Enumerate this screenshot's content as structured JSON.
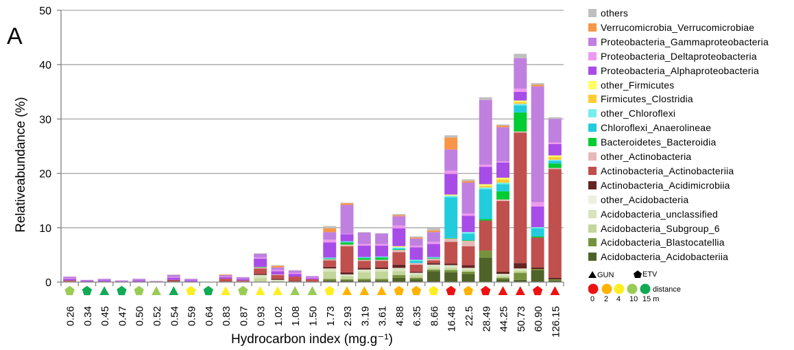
{
  "panel_label": "A",
  "chart_data": {
    "type": "bar",
    "stacked": true,
    "xlabel": "Hydrocarbon index (mg.g⁻¹)",
    "ylabel": "Relativeabundance (%)",
    "ylim": [
      0,
      50
    ],
    "yticks": [
      0,
      10,
      20,
      30,
      40,
      50
    ],
    "grid": true,
    "legend_position": "right",
    "categories": [
      "0.26",
      "0.34",
      "0.45",
      "0.47",
      "0.50",
      "0.52",
      "0.54",
      "0.59",
      "0.64",
      "0.83",
      "0.87",
      "0.93",
      "1.02",
      "1.08",
      "1.50",
      "1.73",
      "2.93",
      "3.19",
      "3.61",
      "4.88",
      "6.35",
      "8.66",
      "16.48",
      "22.5",
      "28.49",
      "44.25",
      "50.73",
      "60.90",
      "126.15"
    ],
    "sample_markers": [
      {
        "shape": "pentagon",
        "color": "#99cc55"
      },
      {
        "shape": "pentagon",
        "color": "#11aa55"
      },
      {
        "shape": "triangle",
        "color": "#11aa55"
      },
      {
        "shape": "pentagon",
        "color": "#11aa55"
      },
      {
        "shape": "pentagon",
        "color": "#99cc55"
      },
      {
        "shape": "triangle",
        "color": "#99cc55"
      },
      {
        "shape": "triangle",
        "color": "#11aa55"
      },
      {
        "shape": "pentagon",
        "color": "#ffee22"
      },
      {
        "shape": "pentagon",
        "color": "#11aa55"
      },
      {
        "shape": "triangle",
        "color": "#ffee22"
      },
      {
        "shape": "pentagon",
        "color": "#99cc55"
      },
      {
        "shape": "triangle",
        "color": "#ffee22"
      },
      {
        "shape": "triangle",
        "color": "#ffee22"
      },
      {
        "shape": "triangle",
        "color": "#99cc55"
      },
      {
        "shape": "triangle",
        "color": "#99cc55"
      },
      {
        "shape": "pentagon",
        "color": "#ffee22"
      },
      {
        "shape": "triangle",
        "color": "#ffb300"
      },
      {
        "shape": "triangle",
        "color": "#ffb300"
      },
      {
        "shape": "triangle",
        "color": "#ffb300"
      },
      {
        "shape": "pentagon",
        "color": "#ffb300"
      },
      {
        "shape": "pentagon",
        "color": "#ffb300"
      },
      {
        "shape": "pentagon",
        "color": "#ffee22"
      },
      {
        "shape": "pentagon",
        "color": "#ee1111"
      },
      {
        "shape": "pentagon",
        "color": "#ffb300"
      },
      {
        "shape": "pentagon",
        "color": "#ee1111"
      },
      {
        "shape": "triangle",
        "color": "#ee1111"
      },
      {
        "shape": "triangle",
        "color": "#ee1111"
      },
      {
        "shape": "pentagon",
        "color": "#ee1111"
      },
      {
        "shape": "triangle",
        "color": "#ee1111"
      }
    ],
    "series": [
      {
        "name": "Acidobacteria_Acidobacteriia",
        "color": "#4f6228",
        "values": [
          0,
          0,
          0,
          0,
          0,
          0,
          0,
          0,
          0,
          0,
          0,
          0,
          0,
          0,
          0,
          0.3,
          0.3,
          0.3,
          0.3,
          0.8,
          0.5,
          2.0,
          1.8,
          1.5,
          4.5,
          0.5,
          0.4,
          2.2,
          0.3
        ]
      },
      {
        "name": "Acidobacteria_Blastocatellia",
        "color": "#76923c",
        "values": [
          0,
          0,
          0,
          0,
          0,
          0,
          0,
          0,
          0,
          0,
          0,
          0,
          0,
          0,
          0,
          0.3,
          0.2,
          0.3,
          0.3,
          0.5,
          0.3,
          0.3,
          0.4,
          0.4,
          1.3,
          0.3,
          1.3,
          0.2,
          0.2
        ]
      },
      {
        "name": "Acidobacteria_Subgroup_6",
        "color": "#c3d69b",
        "values": [
          0.1,
          0,
          0,
          0,
          0,
          0,
          0.1,
          0,
          0,
          0,
          0.1,
          0.7,
          0.2,
          0,
          0,
          1.3,
          0.6,
          1.2,
          1.3,
          0.7,
          0.5,
          0.3,
          0.4,
          0.3,
          0,
          0.3,
          0.4,
          0,
          0
        ]
      },
      {
        "name": "Acidobacteria_unclassified",
        "color": "#d7e4bd",
        "values": [
          0,
          0,
          0,
          0,
          0,
          0,
          0,
          0,
          0,
          0,
          0,
          0.5,
          0.1,
          0.1,
          0,
          0.5,
          0.2,
          0.4,
          0.4,
          0.5,
          0.3,
          0.5,
          0.4,
          0.3,
          0,
          0.3,
          0.3,
          0,
          0
        ]
      },
      {
        "name": "other_Acidobacteria",
        "color": "#ebf1de",
        "values": [
          0,
          0,
          0,
          0,
          0,
          0,
          0,
          0,
          0,
          0,
          0,
          0.1,
          0.1,
          0,
          0,
          0.1,
          0.1,
          0.1,
          0.1,
          0.1,
          0.1,
          0.1,
          0.1,
          0.1,
          0,
          0.1,
          0.1,
          0,
          0
        ]
      },
      {
        "name": "Actinobacteria_Acidimicrobiia",
        "color": "#632523",
        "values": [
          0,
          0,
          0,
          0,
          0,
          0,
          0.1,
          0,
          0,
          0.1,
          0,
          0.2,
          0.2,
          0.1,
          0.1,
          0.3,
          0.4,
          0.3,
          0.3,
          0.6,
          0.2,
          0.3,
          0.3,
          0.5,
          0,
          0.4,
          1.0,
          0.3,
          0.3
        ]
      },
      {
        "name": "Actinobacteria_Actinobacteriia",
        "color": "#c0504d",
        "values": [
          0.2,
          0,
          0.1,
          0,
          0.1,
          0,
          0.2,
          0.1,
          0,
          0.5,
          0.2,
          1.0,
          0.7,
          0.8,
          0.4,
          1.2,
          4.8,
          1.3,
          1.2,
          2.3,
          1.3,
          0.5,
          4.0,
          3.5,
          5.5,
          13.0,
          24.0,
          5.5,
          20.0
        ]
      },
      {
        "name": "other_Actinobacteria",
        "color": "#e6b9b8",
        "values": [
          0,
          0,
          0,
          0,
          0,
          0,
          0,
          0,
          0,
          0,
          0,
          0.2,
          0.1,
          0,
          0,
          0.2,
          0.3,
          0.2,
          0.2,
          0.4,
          0.3,
          0.3,
          0.6,
          1.0,
          0,
          0.3,
          0.2,
          0,
          0.2
        ]
      },
      {
        "name": "Bacteroidetes_Bacteroidia",
        "color": "#00cc33",
        "values": [
          0,
          0,
          0,
          0,
          0,
          0,
          0,
          0,
          0,
          0,
          0,
          0.1,
          0,
          0,
          0,
          0.1,
          0.4,
          0.3,
          0.4,
          0.1,
          0,
          0.1,
          0.1,
          0.1,
          0.3,
          1.5,
          3.5,
          0.2,
          0.8
        ]
      },
      {
        "name": "Chloroflexi_Anaerolineae",
        "color": "#22ccdd",
        "values": [
          0,
          0,
          0,
          0,
          0,
          0,
          0,
          0,
          0,
          0,
          0,
          0,
          0,
          0,
          0,
          0.1,
          0.1,
          0.1,
          0.1,
          0.2,
          0.4,
          0.1,
          7.5,
          1.2,
          5.5,
          1.3,
          1.3,
          1.5,
          0.5
        ]
      },
      {
        "name": "other_Chloroflexi",
        "color": "#77eeee",
        "values": [
          0,
          0,
          0,
          0,
          0,
          0,
          0,
          0,
          0,
          0,
          0,
          0,
          0,
          0,
          0,
          0.1,
          0.1,
          0.1,
          0.1,
          0.2,
          0.2,
          0.1,
          0.3,
          0.3,
          0.3,
          0.3,
          0.3,
          0.2,
          0.2
        ]
      },
      {
        "name": "Firmicutes_Clostridia",
        "color": "#ffcc33",
        "values": [
          0,
          0,
          0,
          0,
          0,
          0,
          0,
          0,
          0,
          0,
          0,
          0,
          0,
          0,
          0,
          0,
          0,
          0,
          0,
          0,
          0,
          0,
          0,
          0,
          0.3,
          0.6,
          0.3,
          0,
          0.5
        ]
      },
      {
        "name": "other_Firmicutes",
        "color": "#ffff66",
        "values": [
          0,
          0,
          0,
          0,
          0,
          0,
          0,
          0,
          0,
          0,
          0,
          0,
          0,
          0,
          0,
          0,
          0,
          0,
          0,
          0.2,
          0,
          0,
          0.2,
          0,
          0.3,
          0.3,
          0.3,
          0,
          0.3
        ]
      },
      {
        "name": "Proteobacteria_Alphaproteobacteria",
        "color": "#a84ce8",
        "values": [
          0.3,
          0.2,
          0.2,
          0.1,
          0.2,
          0.1,
          0.4,
          0.2,
          0,
          0.3,
          0.2,
          1.5,
          0.6,
          0.5,
          0.2,
          2.8,
          1.3,
          2.1,
          2.0,
          3.3,
          2.3,
          2.4,
          3.8,
          3.0,
          3.2,
          2.8,
          1.6,
          3.8,
          2.1
        ]
      },
      {
        "name": "Proteobacteria_Deltaproteobacteria",
        "color": "#ee99ee",
        "values": [
          0.1,
          0,
          0,
          0,
          0,
          0,
          0.1,
          0,
          0,
          0.1,
          0,
          0.2,
          0.2,
          0.2,
          0.1,
          0.5,
          0.1,
          0.3,
          0.3,
          0.5,
          0.3,
          0.4,
          0.6,
          0.4,
          0.4,
          0.2,
          0.6,
          0.8,
          0.3
        ]
      },
      {
        "name": "Proteobacteria_Gammaproteobacteria",
        "color": "#c080e0",
        "values": [
          0.3,
          0.2,
          0.3,
          0.2,
          0.3,
          0.1,
          0.4,
          0.3,
          0,
          0.3,
          0.4,
          0.7,
          0.5,
          0.4,
          0.3,
          1.4,
          5.3,
          2.1,
          1.9,
          1.7,
          1.3,
          1.8,
          3.9,
          5.7,
          11.9,
          6.3,
          5.6,
          21.3,
          4.3
        ]
      },
      {
        "name": "Verrucomicrobia_Verrucomicrobiae",
        "color": "#f79646",
        "values": [
          0,
          0,
          0,
          0,
          0,
          0,
          0,
          0,
          0,
          0.1,
          0,
          0,
          0.3,
          0,
          0,
          0.7,
          0.3,
          0,
          0,
          0.2,
          0.2,
          0.3,
          2.2,
          0.3,
          0,
          0.3,
          0,
          0.3,
          0
        ]
      },
      {
        "name": "others",
        "color": "#bfbfbf",
        "values": [
          0,
          0,
          0,
          0,
          0,
          0,
          0.1,
          0,
          0,
          0,
          0,
          0.1,
          0.1,
          0.1,
          0,
          0.4,
          0.1,
          0.1,
          0.1,
          0.2,
          0.2,
          0.5,
          0.4,
          0.3,
          0.5,
          0.2,
          0.8,
          0.3,
          0.3
        ]
      }
    ]
  },
  "legend_order": [
    "others",
    "Verrucomicrobia_Verrucomicrobiae",
    "Proteobacteria_Gammaproteobacteria",
    "Proteobacteria_Deltaproteobacteria",
    "Proteobacteria_Alphaproteobacteria",
    "other_Firmicutes",
    "Firmicutes_Clostridia",
    "other_Chloroflexi",
    "Chloroflexi_Anaerolineae",
    "Bacteroidetes_Bacteroidia",
    "other_Actinobacteria",
    "Actinobacteria_Actinobacteriia",
    "Actinobacteria_Acidimicrobiia",
    "other_Acidobacteria",
    "Acidobacteria_unclassified",
    "Acidobacteria_Subgroup_6",
    "Acidobacteria_Blastocatellia",
    "Acidobacteria_Acidobacteriia"
  ],
  "marker_key": {
    "gun_label": "GUN",
    "etv_label": "ETV",
    "distance_label": "distance",
    "distances": [
      {
        "label": "0",
        "color": "#ee1111"
      },
      {
        "label": "2",
        "color": "#ffb300"
      },
      {
        "label": "4",
        "color": "#ffee22"
      },
      {
        "label": "10",
        "color": "#99cc55"
      },
      {
        "label": "15 m",
        "color": "#11aa55"
      }
    ]
  }
}
